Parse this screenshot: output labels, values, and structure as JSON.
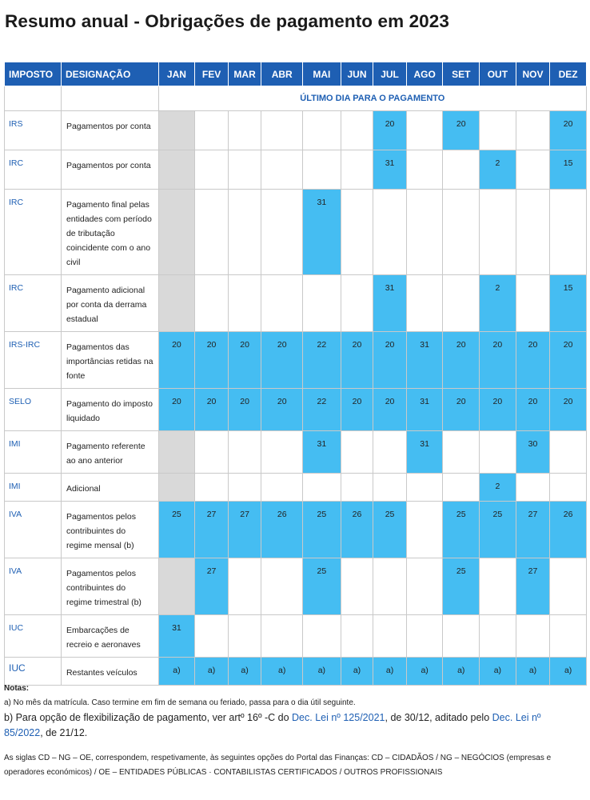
{
  "title": "Resumo anual - Obrigações de pagamento em 2023",
  "table": {
    "headers": {
      "imposto": "IMPOSTO",
      "designacao": "DESIGNAÇÃO"
    },
    "months": [
      "JAN",
      "FEV",
      "MAR",
      "ABR",
      "MAI",
      "JUN",
      "JUL",
      "AGO",
      "SET",
      "OUT",
      "NOV",
      "DEZ"
    ],
    "subheader": "ÚLTIMO DIA PARA O PAGAMENTO",
    "rows": [
      {
        "tax": "IRS",
        "desig": "Pagamentos por conta",
        "cells": [
          {
            "v": "",
            "c": "gray"
          },
          {
            "v": ""
          },
          {
            "v": ""
          },
          {
            "v": ""
          },
          {
            "v": ""
          },
          {
            "v": ""
          },
          {
            "v": "20",
            "c": "blue"
          },
          {
            "v": ""
          },
          {
            "v": "20",
            "c": "blue"
          },
          {
            "v": ""
          },
          {
            "v": ""
          },
          {
            "v": "20",
            "c": "blue"
          }
        ]
      },
      {
        "tax": "IRC",
        "desig": "Pagamentos por conta",
        "cells": [
          {
            "v": "",
            "c": "gray"
          },
          {
            "v": ""
          },
          {
            "v": ""
          },
          {
            "v": ""
          },
          {
            "v": ""
          },
          {
            "v": ""
          },
          {
            "v": "31",
            "c": "blue"
          },
          {
            "v": ""
          },
          {
            "v": ""
          },
          {
            "v": "2",
            "c": "blue"
          },
          {
            "v": ""
          },
          {
            "v": "15",
            "c": "blue"
          }
        ]
      },
      {
        "tax": "IRC",
        "desig": "Pagamento final pelas entidades com período de tributação coincidente com o ano civil",
        "cells": [
          {
            "v": "",
            "c": "gray"
          },
          {
            "v": ""
          },
          {
            "v": ""
          },
          {
            "v": ""
          },
          {
            "v": "31",
            "c": "blue"
          },
          {
            "v": ""
          },
          {
            "v": ""
          },
          {
            "v": ""
          },
          {
            "v": ""
          },
          {
            "v": ""
          },
          {
            "v": ""
          },
          {
            "v": ""
          }
        ]
      },
      {
        "tax": "IRC",
        "desig": "Pagamento adicional por conta da derrama estadual",
        "cells": [
          {
            "v": "",
            "c": "gray"
          },
          {
            "v": ""
          },
          {
            "v": ""
          },
          {
            "v": ""
          },
          {
            "v": ""
          },
          {
            "v": ""
          },
          {
            "v": "31",
            "c": "blue"
          },
          {
            "v": ""
          },
          {
            "v": ""
          },
          {
            "v": "2",
            "c": "blue"
          },
          {
            "v": ""
          },
          {
            "v": "15",
            "c": "blue"
          }
        ]
      },
      {
        "tax": "IRS-IRC",
        "desig": "Pagamentos das importâncias retidas na fonte",
        "cells": [
          {
            "v": "20",
            "c": "blue"
          },
          {
            "v": "20",
            "c": "blue"
          },
          {
            "v": "20",
            "c": "blue"
          },
          {
            "v": "20",
            "c": "blue"
          },
          {
            "v": "22",
            "c": "blue"
          },
          {
            "v": "20",
            "c": "blue"
          },
          {
            "v": "20",
            "c": "blue"
          },
          {
            "v": "31",
            "c": "blue"
          },
          {
            "v": "20",
            "c": "blue"
          },
          {
            "v": "20",
            "c": "blue"
          },
          {
            "v": "20",
            "c": "blue"
          },
          {
            "v": "20",
            "c": "blue"
          }
        ]
      },
      {
        "tax": "SELO",
        "desig": "Pagamento do imposto liquidado",
        "cells": [
          {
            "v": "20",
            "c": "blue"
          },
          {
            "v": "20",
            "c": "blue"
          },
          {
            "v": "20",
            "c": "blue"
          },
          {
            "v": "20",
            "c": "blue"
          },
          {
            "v": "22",
            "c": "blue"
          },
          {
            "v": "20",
            "c": "blue"
          },
          {
            "v": "20",
            "c": "blue"
          },
          {
            "v": "31",
            "c": "blue"
          },
          {
            "v": "20",
            "c": "blue"
          },
          {
            "v": "20",
            "c": "blue"
          },
          {
            "v": "20",
            "c": "blue"
          },
          {
            "v": "20",
            "c": "blue"
          }
        ]
      },
      {
        "tax": "IMI",
        "desig": "Pagamento referente ao ano anterior",
        "cells": [
          {
            "v": "",
            "c": "gray"
          },
          {
            "v": ""
          },
          {
            "v": ""
          },
          {
            "v": ""
          },
          {
            "v": "31",
            "c": "blue"
          },
          {
            "v": ""
          },
          {
            "v": ""
          },
          {
            "v": "31",
            "c": "blue"
          },
          {
            "v": ""
          },
          {
            "v": ""
          },
          {
            "v": "30",
            "c": "blue"
          },
          {
            "v": ""
          }
        ]
      },
      {
        "tax": "IMI",
        "desig": "Adicional",
        "cells": [
          {
            "v": "",
            "c": "gray"
          },
          {
            "v": ""
          },
          {
            "v": ""
          },
          {
            "v": ""
          },
          {
            "v": ""
          },
          {
            "v": ""
          },
          {
            "v": ""
          },
          {
            "v": ""
          },
          {
            "v": ""
          },
          {
            "v": "2",
            "c": "blue"
          },
          {
            "v": ""
          },
          {
            "v": ""
          }
        ]
      },
      {
        "tax": "IVA",
        "desig": "Pagamentos pelos contribuintes do regime mensal (b)",
        "cells": [
          {
            "v": "25",
            "c": "blue"
          },
          {
            "v": "27",
            "c": "blue"
          },
          {
            "v": "27",
            "c": "blue"
          },
          {
            "v": "26",
            "c": "blue"
          },
          {
            "v": "25",
            "c": "blue"
          },
          {
            "v": "26",
            "c": "blue"
          },
          {
            "v": "25",
            "c": "blue"
          },
          {
            "v": ""
          },
          {
            "v": "25",
            "c": "blue"
          },
          {
            "v": "25",
            "c": "blue"
          },
          {
            "v": "27",
            "c": "blue"
          },
          {
            "v": "26",
            "c": "blue"
          }
        ]
      },
      {
        "tax": "IVA",
        "desig": "Pagamentos pelos contribuintes do regime trimestral (b)",
        "cells": [
          {
            "v": "",
            "c": "gray"
          },
          {
            "v": "27",
            "c": "blue"
          },
          {
            "v": ""
          },
          {
            "v": ""
          },
          {
            "v": "25",
            "c": "blue"
          },
          {
            "v": ""
          },
          {
            "v": ""
          },
          {
            "v": ""
          },
          {
            "v": "25",
            "c": "blue"
          },
          {
            "v": ""
          },
          {
            "v": "27",
            "c": "blue"
          },
          {
            "v": ""
          }
        ]
      },
      {
        "tax": "IUC",
        "desig": "Embarcações de recreio e aeronaves",
        "cells": [
          {
            "v": "31",
            "c": "blue"
          },
          {
            "v": ""
          },
          {
            "v": ""
          },
          {
            "v": ""
          },
          {
            "v": ""
          },
          {
            "v": ""
          },
          {
            "v": ""
          },
          {
            "v": ""
          },
          {
            "v": ""
          },
          {
            "v": ""
          },
          {
            "v": ""
          },
          {
            "v": ""
          }
        ]
      },
      {
        "tax": "IUC",
        "desig": "Restantes veículos",
        "cells": [
          {
            "v": "a)",
            "c": "blue"
          },
          {
            "v": "a)",
            "c": "blue"
          },
          {
            "v": "a)",
            "c": "blue"
          },
          {
            "v": "a)",
            "c": "blue"
          },
          {
            "v": "a)",
            "c": "blue"
          },
          {
            "v": "a)",
            "c": "blue"
          },
          {
            "v": "a)",
            "c": "blue"
          },
          {
            "v": "a)",
            "c": "blue"
          },
          {
            "v": "a)",
            "c": "blue"
          },
          {
            "v": "a)",
            "c": "blue"
          },
          {
            "v": "a)",
            "c": "blue"
          },
          {
            "v": "a)",
            "c": "blue"
          }
        ]
      }
    ]
  },
  "notes": {
    "heading": "Notas",
    "a": "a) No mês da matrícula. Caso termine em fim de semana ou feriado, passa para o dia útil seguinte.",
    "b_pre": "b) Para opção de flexibilização de pagamento, ver artº 16º -C do ",
    "b_link1": "Dec. Lei nº 125/2021",
    "b_mid": ", de 30/12, aditado pelo ",
    "b_link2": "Dec. Lei nº 85/2022",
    "b_post": ", de 21/12.",
    "siglas": "As siglas CD – NG – OE, correspondem, respetivamente, às seguintes opções do Portal das Finanças: CD – CIDADÃOS / NG – NEGÓCIOS (empresas e operadores económicos) / OE – ENTIDADES PÚBLICAS · CONTABILISTAS CERTIFICADOS / OUTROS PROFISSIONAIS"
  }
}
